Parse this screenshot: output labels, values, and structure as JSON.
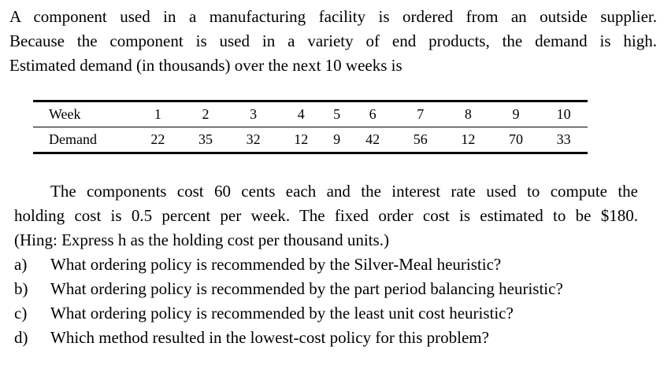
{
  "intro": {
    "lines": [
      "A component used in a manufacturing facility is ordered from an outside supplier.",
      "Because the component is used in a variety of end products, the demand is high.",
      "Estimated demand (in thousands) over the next 10 weeks is"
    ]
  },
  "table": {
    "week_label": "Week",
    "demand_label": "Demand",
    "weeks": [
      "1",
      "2",
      "3",
      "4",
      "5",
      "6",
      "7",
      "8",
      "9",
      "10"
    ],
    "demand": [
      "22",
      "35",
      "32",
      "12",
      "9",
      "42",
      "56",
      "12",
      "70",
      "33"
    ]
  },
  "body": {
    "lines": [
      "The components cost 60 cents each and the interest rate used to compute the",
      "holding cost is 0.5 percent per week. The fixed order cost is estimated to be $180.",
      "(Hing: Express h as the holding cost per thousand units.)"
    ]
  },
  "questions": [
    {
      "letter": "a)",
      "text": "What ordering policy is recommended by the Silver-Meal heuristic?"
    },
    {
      "letter": "b)",
      "text": "What ordering policy is recommended by the part period balancing heuristic?"
    },
    {
      "letter": "c)",
      "text": "What ordering policy is recommended by the least unit cost heuristic?"
    },
    {
      "letter": "d)",
      "text": "Which method resulted in the lowest-cost policy for this problem?"
    }
  ]
}
